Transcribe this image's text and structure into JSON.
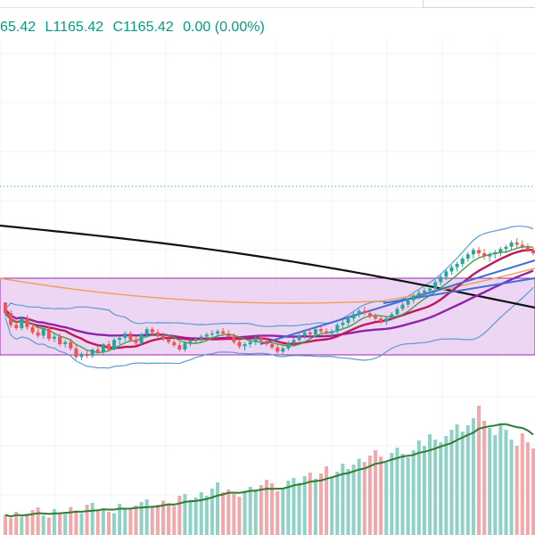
{
  "legend": {
    "high_tail": "65.42",
    "low": "L1165.42",
    "close": "C1165.42",
    "change": "0.00 (0.00%)"
  },
  "colors": {
    "up": "#26a69a",
    "down": "#ef5350",
    "up_volume": "#8fd1c5",
    "down_volume": "#f2a7ab",
    "legend_text": "#089981",
    "box_fill": "#e6c8ef",
    "box_stroke": "#9c27b0",
    "sma_long": "#111111",
    "ema_mid": "#c2185b",
    "ema_slow": "#8e24aa",
    "ema_fast": "#43a047",
    "bollinger": "#5b9bd5",
    "sma_orange": "#f0a050",
    "trend_line": "#3f6fd6",
    "volume_ma": "#2e7d32"
  },
  "chart_data": {
    "type": "candlestick",
    "candles": [
      [
        418,
        418,
        392,
        398
      ],
      [
        398,
        404,
        371,
        376
      ],
      [
        376,
        382,
        366,
        370
      ],
      [
        370,
        392,
        366,
        388
      ],
      [
        388,
        394,
        367,
        372
      ],
      [
        372,
        380,
        358,
        362
      ],
      [
        362,
        368,
        352,
        356
      ],
      [
        356,
        372,
        350,
        368
      ],
      [
        368,
        374,
        346,
        350
      ],
      [
        350,
        360,
        344,
        354
      ],
      [
        354,
        360,
        336,
        340
      ],
      [
        340,
        348,
        334,
        344
      ],
      [
        344,
        350,
        328,
        332
      ],
      [
        332,
        338,
        312,
        316
      ],
      [
        316,
        326,
        310,
        322
      ],
      [
        322,
        330,
        314,
        318
      ],
      [
        318,
        332,
        314,
        330
      ],
      [
        330,
        338,
        320,
        326
      ],
      [
        326,
        342,
        320,
        340
      ],
      [
        340,
        346,
        326,
        330
      ],
      [
        330,
        352,
        328,
        348
      ],
      [
        348,
        356,
        340,
        352
      ],
      [
        352,
        364,
        346,
        360
      ],
      [
        360,
        364,
        344,
        348
      ],
      [
        348,
        354,
        338,
        342
      ],
      [
        342,
        362,
        338,
        358
      ],
      [
        358,
        372,
        352,
        368
      ],
      [
        368,
        372,
        356,
        362
      ],
      [
        362,
        368,
        352,
        356
      ],
      [
        356,
        362,
        346,
        350
      ],
      [
        350,
        356,
        340,
        344
      ],
      [
        344,
        350,
        334,
        338
      ],
      [
        338,
        344,
        326,
        330
      ],
      [
        330,
        346,
        326,
        342
      ],
      [
        342,
        350,
        336,
        346
      ],
      [
        346,
        354,
        340,
        350
      ],
      [
        350,
        358,
        344,
        354
      ],
      [
        354,
        362,
        348,
        358
      ],
      [
        358,
        366,
        350,
        360
      ],
      [
        360,
        368,
        352,
        364
      ],
      [
        364,
        370,
        356,
        360
      ],
      [
        360,
        366,
        350,
        354
      ],
      [
        354,
        360,
        340,
        344
      ],
      [
        344,
        350,
        332,
        336
      ],
      [
        336,
        344,
        328,
        340
      ],
      [
        340,
        348,
        334,
        344
      ],
      [
        344,
        356,
        338,
        352
      ],
      [
        352,
        358,
        342,
        346
      ],
      [
        346,
        352,
        336,
        340
      ],
      [
        340,
        346,
        330,
        334
      ],
      [
        334,
        340,
        322,
        326
      ],
      [
        326,
        336,
        320,
        332
      ],
      [
        332,
        346,
        328,
        342
      ],
      [
        342,
        352,
        336,
        348
      ],
      [
        348,
        360,
        344,
        356
      ],
      [
        356,
        366,
        350,
        362
      ],
      [
        362,
        370,
        354,
        358
      ],
      [
        358,
        372,
        354,
        368
      ],
      [
        368,
        374,
        360,
        364
      ],
      [
        364,
        370,
        356,
        360
      ],
      [
        360,
        368,
        354,
        364
      ],
      [
        364,
        380,
        360,
        376
      ],
      [
        376,
        386,
        370,
        380
      ],
      [
        380,
        392,
        374,
        388
      ],
      [
        388,
        400,
        382,
        396
      ],
      [
        396,
        406,
        390,
        402
      ],
      [
        402,
        410,
        394,
        398
      ],
      [
        398,
        404,
        388,
        392
      ],
      [
        392,
        398,
        384,
        388
      ],
      [
        388,
        394,
        378,
        382
      ],
      [
        382,
        392,
        376,
        388
      ],
      [
        388,
        400,
        384,
        396
      ],
      [
        396,
        410,
        392,
        406
      ],
      [
        406,
        418,
        402,
        414
      ],
      [
        414,
        426,
        408,
        422
      ],
      [
        422,
        434,
        416,
        430
      ],
      [
        430,
        442,
        424,
        436
      ],
      [
        436,
        446,
        428,
        440
      ],
      [
        440,
        448,
        432,
        444
      ],
      [
        444,
        460,
        438,
        456
      ],
      [
        456,
        470,
        450,
        466
      ],
      [
        466,
        480,
        460,
        476
      ],
      [
        476,
        488,
        470,
        484
      ],
      [
        484,
        494,
        476,
        490
      ],
      [
        490,
        504,
        484,
        500
      ],
      [
        500,
        512,
        494,
        508
      ],
      [
        508,
        520,
        500,
        516
      ],
      [
        516,
        522,
        504,
        510
      ],
      [
        510,
        518,
        498,
        504
      ],
      [
        504,
        512,
        494,
        508
      ],
      [
        508,
        516,
        500,
        512
      ],
      [
        512,
        522,
        504,
        518
      ],
      [
        518,
        526,
        510,
        522
      ],
      [
        522,
        534,
        516,
        530
      ],
      [
        530,
        538,
        520,
        526
      ],
      [
        526,
        534,
        518,
        522
      ],
      [
        522,
        528,
        512,
        516
      ],
      [
        516,
        520,
        506,
        510
      ]
    ],
    "sma_long": [],
    "volume": [
      45,
      38,
      52,
      41,
      48,
      56,
      62,
      44,
      39,
      58,
      50,
      47,
      63,
      55,
      49,
      68,
      72,
      54,
      60,
      52,
      49,
      70,
      61,
      58,
      66,
      74,
      80,
      62,
      68,
      77,
      71,
      65,
      88,
      92,
      79,
      84,
      96,
      88,
      104,
      118,
      96,
      102,
      92,
      86,
      99,
      108,
      101,
      112,
      124,
      116,
      98,
      106,
      122,
      128,
      117,
      132,
      140,
      126,
      138,
      154,
      131,
      142,
      160,
      148,
      158,
      171,
      164,
      178,
      190,
      176,
      162,
      184,
      196,
      182,
      174,
      190,
      212,
      200,
      226,
      214,
      208,
      222,
      236,
      248,
      232,
      246,
      262,
      290,
      256,
      240,
      224,
      250,
      236,
      214,
      200,
      228,
      208,
      194
    ]
  }
}
